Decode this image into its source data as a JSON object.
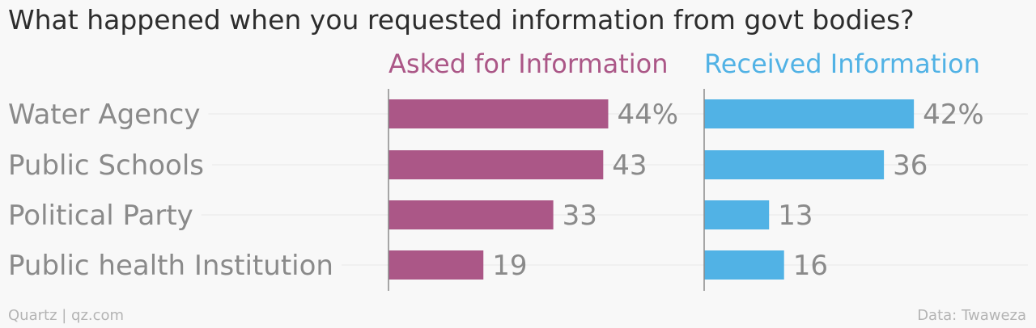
{
  "title": "What happened when you requested information from govt bodies?",
  "footer": {
    "source_left": "Quartz | qz.com",
    "source_right": "Data: Twaweza"
  },
  "colors": {
    "asked": "#ab5787",
    "received": "#51b2e5",
    "text_muted": "#8a8a8a",
    "gridline": "#e7e7e7",
    "axis": "#8a8a8a"
  },
  "chart_data": {
    "type": "bar",
    "orientation": "horizontal",
    "title": "What happened when you requested information from govt bodies?",
    "categories": [
      "Water Agency",
      "Public Schools",
      "Political Party",
      "Public health Institution"
    ],
    "series": [
      {
        "name": "Asked for Information",
        "values": [
          44,
          43,
          33,
          19
        ],
        "labels": [
          "44%",
          "43",
          "33",
          "19"
        ],
        "color": "#ab5787"
      },
      {
        "name": "Received Information",
        "values": [
          42,
          36,
          13,
          16
        ],
        "labels": [
          "42%",
          "36",
          "13",
          "16"
        ],
        "color": "#51b2e5"
      }
    ],
    "xlim": [
      0,
      60
    ],
    "grid": false,
    "legend": "panel titles above each panel"
  }
}
